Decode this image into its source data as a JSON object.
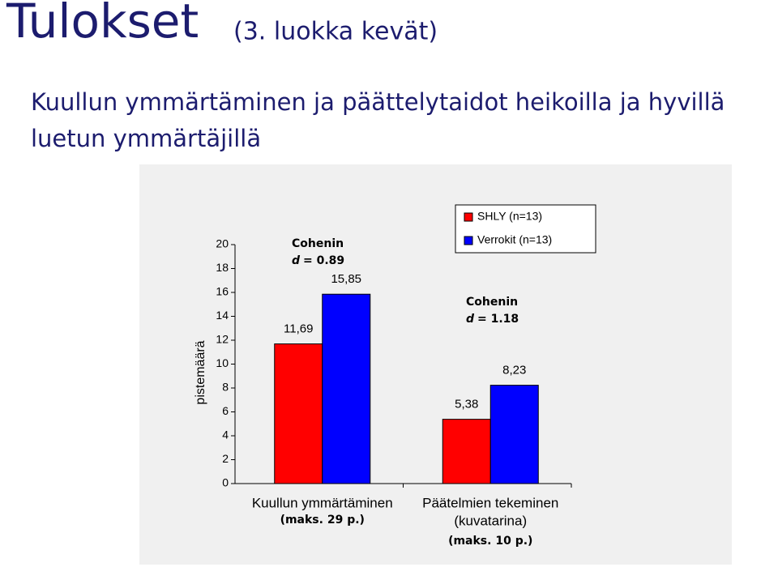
{
  "slide": {
    "title": "Tulokset",
    "title_note": "(3. luokka kevät)",
    "subtitle_lines": [
      "Kuullun ymmärtäminen ja päättelytaidot heikoilla ja hyvillä",
      "luetun ymmärtäjillä"
    ]
  },
  "chart_data": {
    "type": "bar",
    "ylabel": "pistemäärä",
    "categories": [
      [
        "Kuullun ymmärtäminen"
      ],
      [
        "Päätelmien tekeminen",
        "(kuvatarina)"
      ]
    ],
    "category_notes": [
      "(maks. 29 p.)",
      "(maks. 10 p.)"
    ],
    "series": [
      {
        "name": "SHLY (n=13)",
        "color": "#ff0000",
        "values": [
          11.69,
          5.38
        ],
        "value_labels": [
          "11,69",
          "5,38"
        ]
      },
      {
        "name": "Verrokit (n=13)",
        "color": "#0000ff",
        "values": [
          15.85,
          8.23
        ],
        "value_labels": [
          "15,85",
          "8,23"
        ]
      }
    ],
    "annotations": [
      {
        "text": "Cohenin",
        "stat": "d",
        "value": "= 0.89"
      },
      {
        "text": "Cohenin",
        "stat": "d",
        "value": "= 1.18"
      }
    ],
    "ylim": [
      0,
      20
    ],
    "yticks": [
      0,
      2,
      4,
      6,
      8,
      10,
      12,
      14,
      16,
      18,
      20
    ],
    "legend": "top-right"
  }
}
